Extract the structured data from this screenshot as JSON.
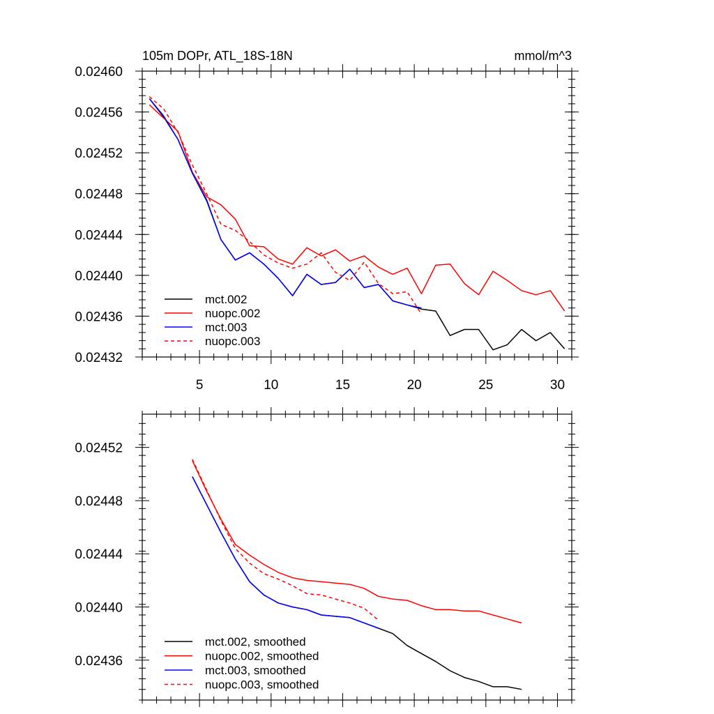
{
  "chart_data": [
    {
      "type": "line",
      "title": "105m DOPr, ATL_18S-18N",
      "units": "mmol/m^3",
      "xlim": [
        1,
        31
      ],
      "ylim": [
        0.02432,
        0.0246
      ],
      "xticks": [
        5,
        10,
        15,
        20,
        25,
        30
      ],
      "yticks": [
        0.0246,
        0.02456,
        0.02452,
        0.02448,
        0.02444,
        0.0244,
        0.02436,
        0.02432
      ],
      "ytick_labels": [
        "0.02460",
        "0.02456",
        "0.02452",
        "0.02448",
        "0.02444",
        "0.02440",
        "0.02436",
        "0.02432"
      ],
      "legend_position": "bottom-left",
      "series": [
        {
          "name": "mct.002",
          "color": "#000000",
          "dash": "solid",
          "x": [
            1.5,
            2.5,
            3.5,
            4.5,
            5.5,
            6.5,
            7.5,
            8.5,
            9.5,
            10.5,
            11.5,
            12.5,
            13.5,
            14.5,
            15.5,
            16.5,
            17.5,
            18.5,
            19.5,
            20.5,
            21.5,
            22.5,
            23.5,
            24.5,
            25.5,
            26.5,
            27.5,
            28.5,
            29.5,
            30.5
          ],
          "y": [
            0.024573,
            0.024555,
            0.024533,
            0.0245,
            0.024473,
            0.024435,
            0.024415,
            0.024422,
            0.024411,
            0.024397,
            0.02438,
            0.024401,
            0.024391,
            0.024393,
            0.024406,
            0.024388,
            0.024391,
            0.024375,
            0.024371,
            0.024367,
            0.024365,
            0.024341,
            0.024347,
            0.024347,
            0.024327,
            0.024332,
            0.024347,
            0.024336,
            0.024344,
            0.024328
          ]
        },
        {
          "name": "nuopc.002",
          "color": "#ff0000",
          "dash": "solid",
          "x": [
            1.5,
            2.5,
            3.5,
            4.5,
            5.5,
            6.5,
            7.5,
            8.5,
            9.5,
            10.5,
            11.5,
            12.5,
            13.5,
            14.5,
            15.5,
            16.5,
            17.5,
            18.5,
            19.5,
            20.5,
            21.5,
            22.5,
            23.5,
            24.5,
            25.5,
            26.5,
            27.5,
            28.5,
            29.5,
            30.5
          ],
          "y": [
            0.024567,
            0.024554,
            0.024541,
            0.024501,
            0.024477,
            0.024469,
            0.024455,
            0.024429,
            0.024428,
            0.024416,
            0.024411,
            0.024427,
            0.024419,
            0.024425,
            0.024414,
            0.024419,
            0.024408,
            0.024401,
            0.024407,
            0.024382,
            0.02441,
            0.024411,
            0.024392,
            0.024381,
            0.024404,
            0.024395,
            0.024385,
            0.024381,
            0.024385,
            0.024365
          ]
        },
        {
          "name": "mct.003",
          "color": "#0000ff",
          "dash": "solid",
          "x": [
            1.5,
            2.5,
            3.5,
            4.5,
            5.5,
            6.5,
            7.5,
            8.5,
            9.5,
            10.5,
            11.5,
            12.5,
            13.5,
            14.5,
            15.5,
            16.5,
            17.5,
            18.5,
            19.5,
            20.5
          ],
          "y": [
            0.024573,
            0.024556,
            0.024533,
            0.0245,
            0.024474,
            0.024435,
            0.024415,
            0.024422,
            0.024411,
            0.024397,
            0.02438,
            0.024401,
            0.024391,
            0.024393,
            0.024406,
            0.024388,
            0.024391,
            0.024375,
            0.024371,
            0.024368
          ]
        },
        {
          "name": "nuopc.003",
          "color": "#ff0000",
          "dash": "dashed",
          "x": [
            1.5,
            2.5,
            3.5,
            4.5,
            5.5,
            6.5,
            7.5,
            8.5,
            9.5,
            10.5,
            11.5,
            12.5,
            13.5,
            14.5,
            15.5,
            16.5,
            17.5,
            18.5,
            19.5,
            20.5
          ],
          "y": [
            0.024575,
            0.024563,
            0.02454,
            0.024508,
            0.02448,
            0.02445,
            0.024444,
            0.024433,
            0.02442,
            0.024412,
            0.024407,
            0.024411,
            0.024422,
            0.024403,
            0.024395,
            0.024413,
            0.024392,
            0.024382,
            0.024384,
            0.024362
          ]
        }
      ]
    },
    {
      "type": "line",
      "title": "",
      "xlim": [
        1,
        31
      ],
      "ylim": [
        0.02433,
        0.024545
      ],
      "xticks": [
        5,
        10,
        15,
        20,
        25,
        30
      ],
      "yticks": [
        0.02452,
        0.02448,
        0.02444,
        0.0244,
        0.02436
      ],
      "ytick_labels": [
        "0.02452",
        "0.02448",
        "0.02444",
        "0.02440",
        "0.02436"
      ],
      "legend_position": "bottom-left",
      "series": [
        {
          "name": "mct.002, smoothed",
          "color": "#000000",
          "dash": "solid",
          "x": [
            4.5,
            5.5,
            6.5,
            7.5,
            8.5,
            9.5,
            10.5,
            11.5,
            12.5,
            13.5,
            14.5,
            15.5,
            16.5,
            17.5,
            18.5,
            19.5,
            20.5,
            21.5,
            22.5,
            23.5,
            24.5,
            25.5,
            26.5,
            27.5
          ],
          "y": [
            0.024498,
            0.024477,
            0.024456,
            0.024436,
            0.024419,
            0.024409,
            0.024403,
            0.0244,
            0.024398,
            0.024394,
            0.024393,
            0.024392,
            0.024388,
            0.024384,
            0.02438,
            0.024371,
            0.024365,
            0.024359,
            0.024352,
            0.024347,
            0.024344,
            0.02434,
            0.02434,
            0.024338
          ]
        },
        {
          "name": "nuopc.002, smoothed",
          "color": "#ff0000",
          "dash": "solid",
          "x": [
            4.5,
            5.5,
            6.5,
            7.5,
            8.5,
            9.5,
            10.5,
            11.5,
            12.5,
            13.5,
            14.5,
            15.5,
            16.5,
            17.5,
            18.5,
            19.5,
            20.5,
            21.5,
            22.5,
            23.5,
            24.5,
            25.5,
            26.5,
            27.5
          ],
          "y": [
            0.02451,
            0.024487,
            0.024466,
            0.024447,
            0.024439,
            0.024432,
            0.024426,
            0.024422,
            0.02442,
            0.024419,
            0.024418,
            0.024417,
            0.024414,
            0.024408,
            0.024406,
            0.024405,
            0.024401,
            0.024398,
            0.024398,
            0.024397,
            0.024397,
            0.024394,
            0.024391,
            0.024388
          ]
        },
        {
          "name": "mct.003, smoothed",
          "color": "#0000ff",
          "dash": "solid",
          "x": [
            4.5,
            5.5,
            6.5,
            7.5,
            8.5,
            9.5,
            10.5,
            11.5,
            12.5,
            13.5,
            14.5,
            15.5,
            16.5,
            17.5
          ],
          "y": [
            0.024498,
            0.024477,
            0.024456,
            0.024436,
            0.024419,
            0.024409,
            0.024403,
            0.0244,
            0.024398,
            0.024394,
            0.024393,
            0.024392,
            0.024388,
            0.024384
          ]
        },
        {
          "name": "nuopc.003, smoothed",
          "color": "#ff0000",
          "dash": "dashed",
          "x": [
            4.5,
            5.5,
            6.5,
            7.5,
            8.5,
            9.5,
            10.5,
            11.5,
            12.5,
            13.5,
            14.5,
            15.5,
            16.5,
            17.5
          ],
          "y": [
            0.024511,
            0.024488,
            0.024465,
            0.024444,
            0.024433,
            0.024425,
            0.024421,
            0.024416,
            0.02441,
            0.024409,
            0.024406,
            0.024403,
            0.024399,
            0.02439
          ]
        }
      ]
    }
  ]
}
